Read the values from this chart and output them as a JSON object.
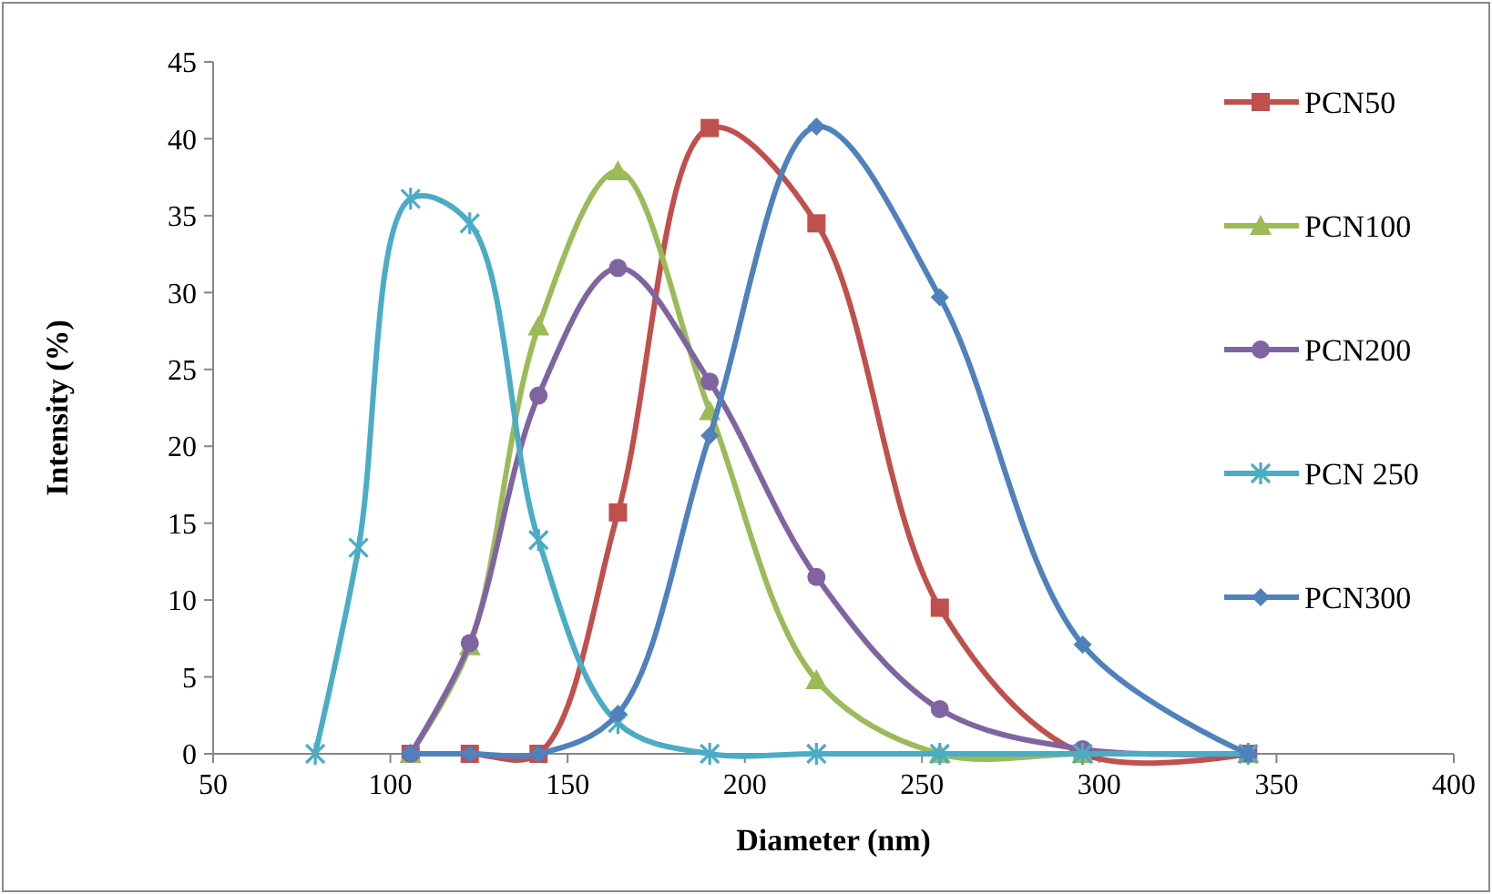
{
  "chart_data": {
    "type": "line",
    "xlabel": "Diameter (nm)",
    "ylabel": "Intensity (%)",
    "xlim": [
      50,
      400
    ],
    "xticks": [
      50,
      100,
      150,
      200,
      250,
      300,
      350,
      400
    ],
    "ylim": [
      0,
      45
    ],
    "yticks": [
      0,
      5,
      10,
      15,
      20,
      25,
      30,
      35,
      40,
      45
    ],
    "grid": false,
    "legend": "right",
    "series": [
      {
        "name": "PCN50",
        "color": "#c0504d",
        "marker": "square",
        "x": [
          105.7,
          122.4,
          141.8,
          164.2,
          190.1,
          220.2,
          255,
          295.3,
          342
        ],
        "values": [
          0,
          0,
          0,
          15.7,
          40.7,
          34.5,
          9.5,
          0,
          0
        ]
      },
      {
        "name": "PCN100",
        "color": "#9bbb59",
        "marker": "triangle",
        "x": [
          105.7,
          122.4,
          141.8,
          164.2,
          190.1,
          220.2,
          255,
          295.3,
          342
        ],
        "values": [
          0,
          7,
          27.8,
          37.9,
          22.3,
          4.8,
          0,
          0,
          0
        ]
      },
      {
        "name": "PCN200",
        "color": "#8064a2",
        "marker": "circle",
        "x": [
          105.7,
          122.4,
          141.8,
          164.2,
          190.1,
          220.2,
          255,
          295.3,
          342
        ],
        "values": [
          0,
          7.2,
          23.3,
          31.6,
          24.2,
          11.5,
          2.9,
          0.3,
          0
        ]
      },
      {
        "name": "PCN 250",
        "color": "#4bacc6",
        "marker": "cross",
        "x": [
          78.8,
          91,
          105.7,
          122.4,
          141.8,
          164.2,
          190.1,
          220.2,
          255,
          295.3,
          342
        ],
        "values": [
          0,
          13.4,
          36.1,
          34.5,
          13.9,
          2,
          0,
          0,
          0,
          0,
          0
        ]
      },
      {
        "name": "PCN300",
        "color": "#4f81bd",
        "marker": "diamond",
        "x": [
          105.7,
          122.4,
          141.8,
          164.2,
          190.1,
          220.2,
          255,
          295.3,
          342
        ],
        "values": [
          0,
          0,
          0,
          2.6,
          20.7,
          40.8,
          29.7,
          7.1,
          0
        ]
      }
    ]
  }
}
